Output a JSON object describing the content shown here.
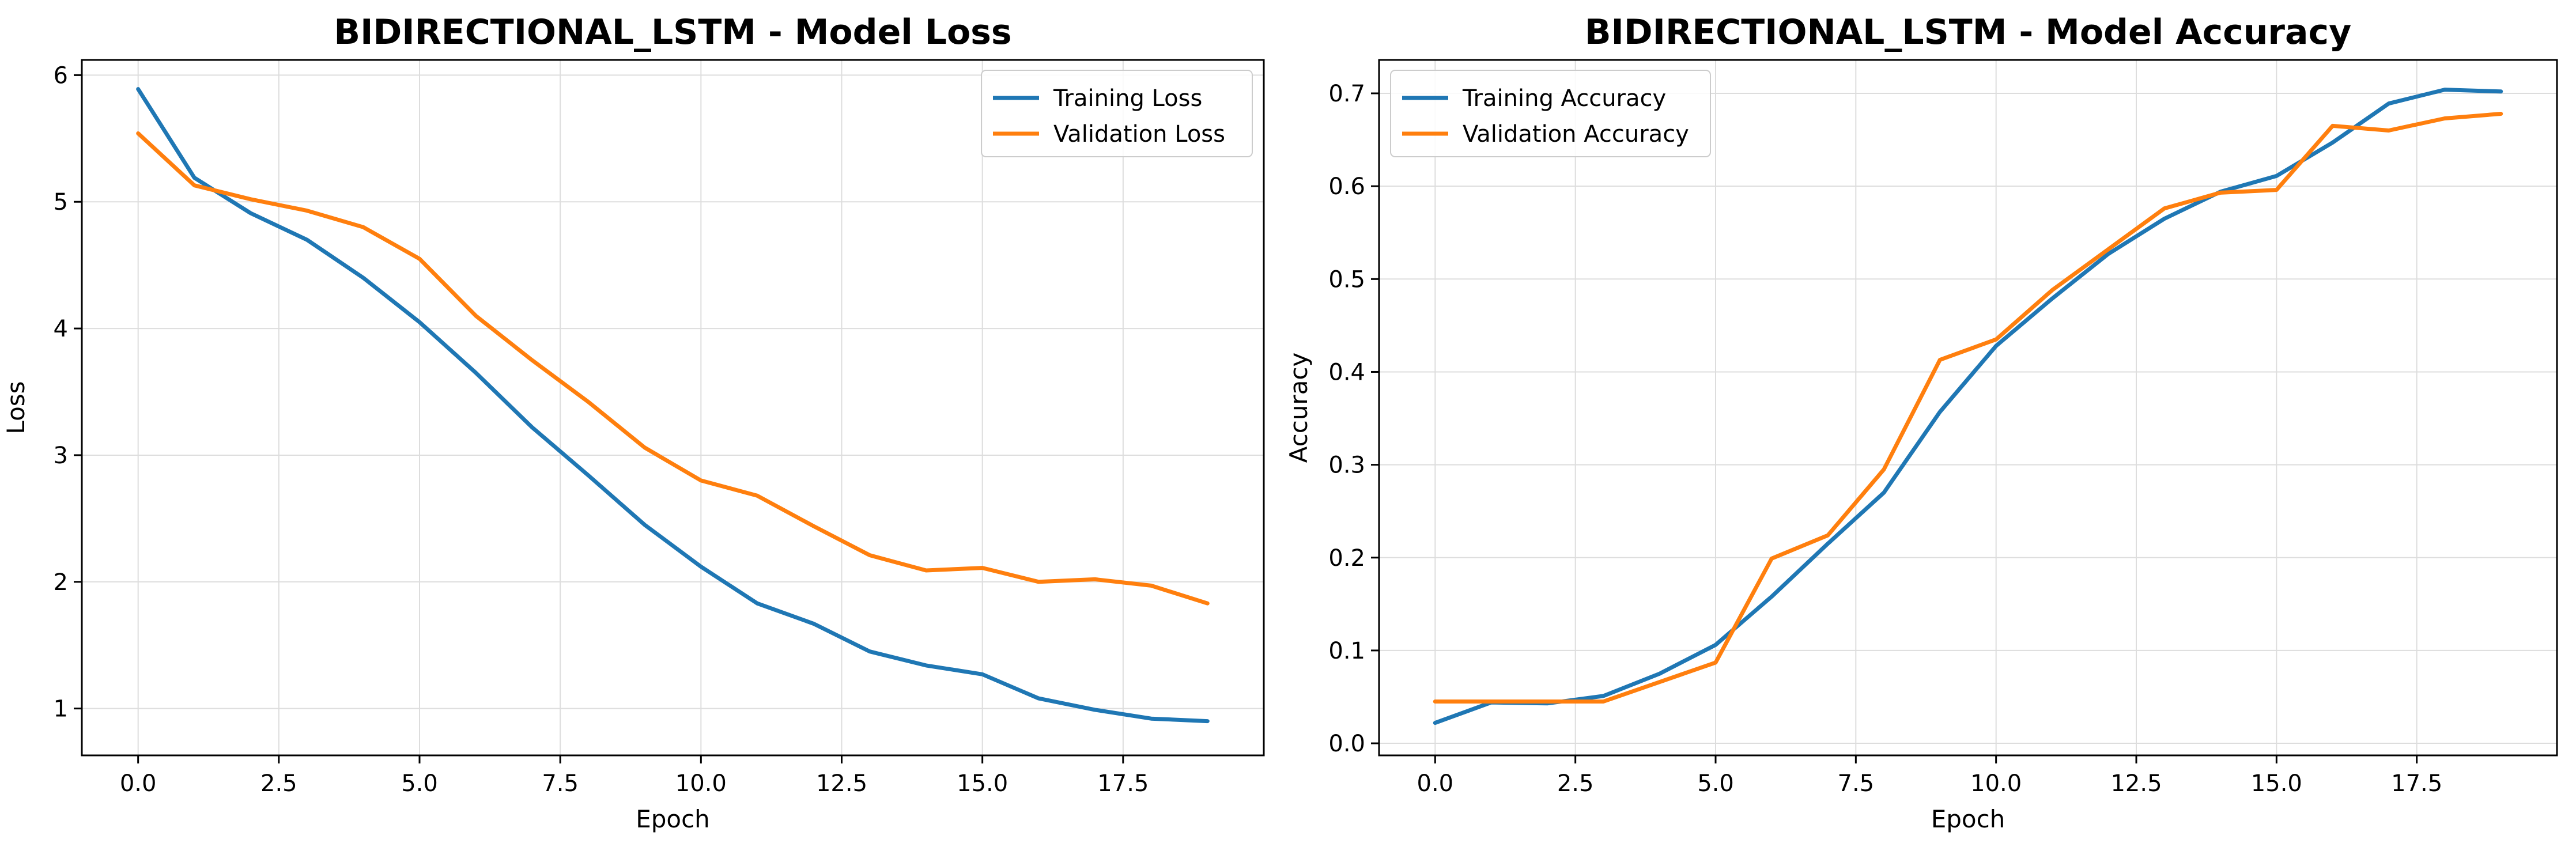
{
  "chart_data": [
    {
      "type": "line",
      "title": "BIDIRECTIONAL_LSTM - Model Loss",
      "xlabel": "Epoch",
      "ylabel": "Loss",
      "xlim": [
        -1,
        20
      ],
      "ylim": [
        0.63,
        6.12
      ],
      "xticks": [
        0,
        2.5,
        5,
        7.5,
        10,
        12.5,
        15,
        17.5
      ],
      "xtick_labels": [
        "0.0",
        "2.5",
        "5.0",
        "7.5",
        "10.0",
        "12.5",
        "15.0",
        "17.5"
      ],
      "yticks": [
        1,
        2,
        3,
        4,
        5,
        6
      ],
      "ytick_labels": [
        "1",
        "2",
        "3",
        "4",
        "5",
        "6"
      ],
      "grid": true,
      "legend_position": "upper right",
      "series": [
        {
          "name": "Training Loss",
          "color": "#1f77b4",
          "x": [
            0,
            1,
            2,
            3,
            4,
            5,
            6,
            7,
            8,
            9,
            10,
            11,
            12,
            13,
            14,
            15,
            16,
            17,
            18,
            19
          ],
          "y": [
            5.89,
            5.19,
            4.91,
            4.7,
            4.4,
            4.05,
            3.65,
            3.22,
            2.84,
            2.45,
            2.12,
            1.83,
            1.67,
            1.45,
            1.34,
            1.27,
            1.08,
            0.99,
            0.92,
            0.9
          ]
        },
        {
          "name": "Validation Loss",
          "color": "#ff7f0e",
          "x": [
            0,
            1,
            2,
            3,
            4,
            5,
            6,
            7,
            8,
            9,
            10,
            11,
            12,
            13,
            14,
            15,
            16,
            17,
            18,
            19
          ],
          "y": [
            5.54,
            5.13,
            5.02,
            4.93,
            4.8,
            4.55,
            4.1,
            3.75,
            3.42,
            3.06,
            2.8,
            2.68,
            2.44,
            2.21,
            2.09,
            2.11,
            2.0,
            2.02,
            1.97,
            1.83
          ]
        }
      ]
    },
    {
      "type": "line",
      "title": "BIDIRECTIONAL_LSTM - Model Accuracy",
      "xlabel": "Epoch",
      "ylabel": "Accuracy",
      "xlim": [
        -1,
        20
      ],
      "ylim": [
        -0.013,
        0.736
      ],
      "xticks": [
        0,
        2.5,
        5,
        7.5,
        10,
        12.5,
        15,
        17.5
      ],
      "xtick_labels": [
        "0.0",
        "2.5",
        "5.0",
        "7.5",
        "10.0",
        "12.5",
        "15.0",
        "17.5"
      ],
      "yticks": [
        0,
        0.1,
        0.2,
        0.3,
        0.4,
        0.5,
        0.6,
        0.7
      ],
      "ytick_labels": [
        "0.0",
        "0.1",
        "0.2",
        "0.3",
        "0.4",
        "0.5",
        "0.6",
        "0.7"
      ],
      "grid": true,
      "legend_position": "upper left",
      "series": [
        {
          "name": "Training Accuracy",
          "color": "#1f77b4",
          "x": [
            0,
            1,
            2,
            3,
            4,
            5,
            6,
            7,
            8,
            9,
            10,
            11,
            12,
            13,
            14,
            15,
            16,
            17,
            18,
            19
          ],
          "y": [
            0.022,
            0.044,
            0.043,
            0.051,
            0.075,
            0.106,
            0.158,
            0.215,
            0.27,
            0.357,
            0.428,
            0.479,
            0.527,
            0.565,
            0.594,
            0.611,
            0.647,
            0.689,
            0.704,
            0.702
          ]
        },
        {
          "name": "Validation Accuracy",
          "color": "#ff7f0e",
          "x": [
            0,
            1,
            2,
            3,
            4,
            5,
            6,
            7,
            8,
            9,
            10,
            11,
            12,
            13,
            14,
            15,
            16,
            17,
            18,
            19
          ],
          "y": [
            0.045,
            0.045,
            0.045,
            0.045,
            0.066,
            0.087,
            0.199,
            0.224,
            0.295,
            0.413,
            0.435,
            0.488,
            0.532,
            0.576,
            0.593,
            0.596,
            0.665,
            0.66,
            0.673,
            0.678
          ]
        }
      ]
    }
  ]
}
